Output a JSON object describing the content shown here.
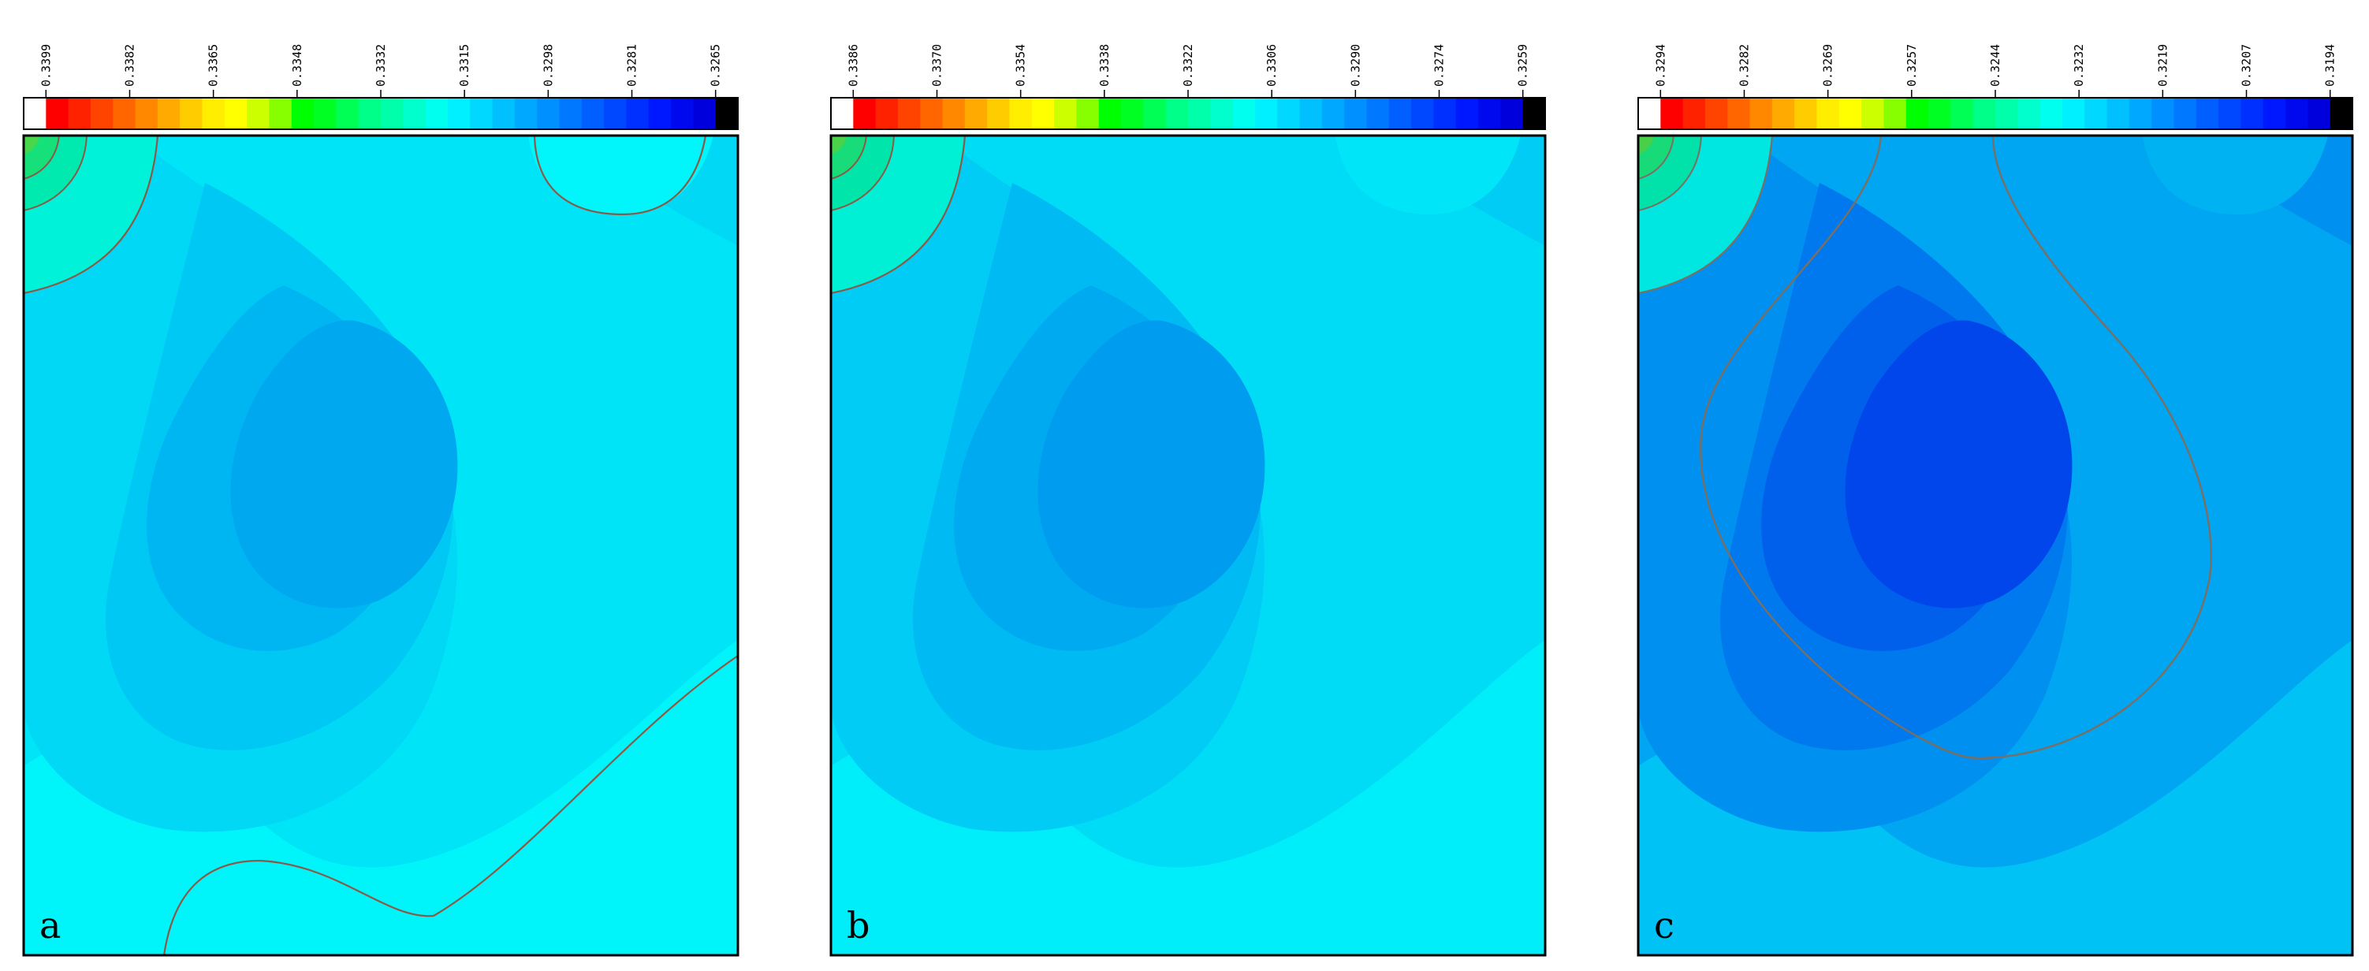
{
  "figure": {
    "panels": [
      {
        "id": "a",
        "letter": "a",
        "colorbar_ticks": [
          "0.3399",
          "0.3382",
          "0.3365",
          "0.3348",
          "0.3332",
          "0.3315",
          "0.3298",
          "0.3281",
          "0.3265"
        ],
        "field": {
          "background": "#00e4f8",
          "bands": [
            "#00d8f6",
            "#00c8f4",
            "#00b6f2",
            "#00a8f0"
          ],
          "bottom_band": "#00f5fb",
          "top_right_blob": "#00f6fa",
          "top_left_blob": [
            "#00f2d8",
            "#00eab0",
            "#16e07a",
            "#48d64a"
          ]
        }
      },
      {
        "id": "b",
        "letter": "b",
        "colorbar_ticks": [
          "0.3386",
          "0.3370",
          "0.3354",
          "0.3338",
          "0.3322",
          "0.3306",
          "0.3290",
          "0.3274",
          "0.3259"
        ],
        "field": {
          "background": "#00dcf6",
          "bands": [
            "#00ccf5",
            "#00baf3",
            "#00aaf1",
            "#009cef"
          ],
          "bottom_band": "#00eef9",
          "top_right_blob": "#00e6f8",
          "top_left_blob": [
            "#00f0d6",
            "#00e6aa",
            "#18dc7a",
            "#4ad24a"
          ]
        }
      },
      {
        "id": "c",
        "letter": "c",
        "colorbar_ticks": [
          "0.3294",
          "0.3282",
          "0.3269",
          "0.3257",
          "0.3244",
          "0.3232",
          "0.3219",
          "0.3207",
          "0.3194"
        ],
        "field": {
          "background": "#00a6f2",
          "bands": [
            "#0090f0",
            "#0078ee",
            "#0060ec",
            "#0046ea"
          ],
          "bottom_band": "#00c2f4",
          "top_right_blob": "#00b2f2",
          "top_left_blob": [
            "#00e6e0",
            "#00e2aa",
            "#18da78",
            "#48d048"
          ]
        }
      }
    ]
  }
}
